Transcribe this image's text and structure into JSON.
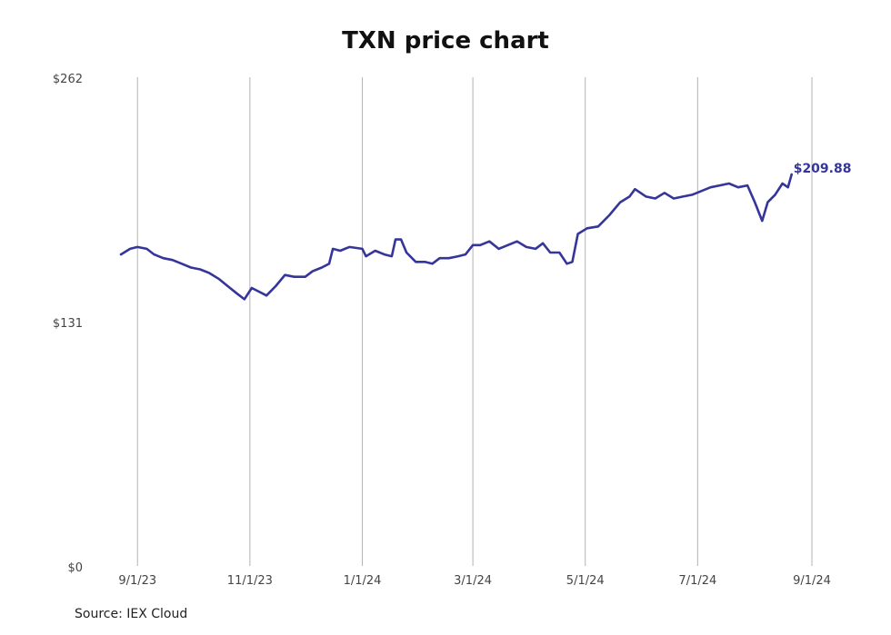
{
  "title": "TXN price chart",
  "source": "Source: IEX Cloud",
  "colors": {
    "line": "#35359a",
    "grid": "#b3b3b3",
    "text": "#444444"
  },
  "chart_data": {
    "type": "line",
    "title": "TXN price chart",
    "xlabel": "",
    "ylabel": "",
    "grid": "vertical",
    "x_ticks": [
      "9/1/23",
      "11/1/23",
      "1/1/24",
      "3/1/24",
      "5/1/24",
      "7/1/24",
      "9/1/24"
    ],
    "y_ticks": [
      "$0",
      "$131",
      "$262"
    ],
    "xlim": [
      "2023-08-23",
      "2024-09-01"
    ],
    "ylim": [
      0,
      262
    ],
    "end_label": "$209.88",
    "series": [
      {
        "color": "#35359a",
        "points": [
          [
            "2023-08-23",
            167
          ],
          [
            "2023-08-28",
            170
          ],
          [
            "2023-09-01",
            171
          ],
          [
            "2023-09-06",
            170
          ],
          [
            "2023-09-10",
            167
          ],
          [
            "2023-09-15",
            165
          ],
          [
            "2023-09-20",
            164
          ],
          [
            "2023-09-25",
            162
          ],
          [
            "2023-09-30",
            160
          ],
          [
            "2023-10-05",
            159
          ],
          [
            "2023-10-10",
            157
          ],
          [
            "2023-10-15",
            154
          ],
          [
            "2023-10-20",
            150
          ],
          [
            "2023-10-25",
            146
          ],
          [
            "2023-10-29",
            143
          ],
          [
            "2023-11-02",
            149
          ],
          [
            "2023-11-06",
            147
          ],
          [
            "2023-11-10",
            145
          ],
          [
            "2023-11-15",
            150
          ],
          [
            "2023-11-20",
            156
          ],
          [
            "2023-11-25",
            155
          ],
          [
            "2023-12-01",
            155
          ],
          [
            "2023-12-05",
            158
          ],
          [
            "2023-12-10",
            160
          ],
          [
            "2023-12-14",
            162
          ],
          [
            "2023-12-16",
            170
          ],
          [
            "2023-12-20",
            169
          ],
          [
            "2023-12-25",
            171
          ],
          [
            "2024-01-01",
            170
          ],
          [
            "2024-01-03",
            166
          ],
          [
            "2024-01-08",
            169
          ],
          [
            "2024-01-13",
            167
          ],
          [
            "2024-01-17",
            166
          ],
          [
            "2024-01-19",
            175
          ],
          [
            "2024-01-22",
            175
          ],
          [
            "2024-01-25",
            168
          ],
          [
            "2024-01-30",
            163
          ],
          [
            "2024-02-04",
            163
          ],
          [
            "2024-02-08",
            162
          ],
          [
            "2024-02-12",
            165
          ],
          [
            "2024-02-17",
            165
          ],
          [
            "2024-02-22",
            166
          ],
          [
            "2024-02-26",
            167
          ],
          [
            "2024-03-01",
            172
          ],
          [
            "2024-03-05",
            172
          ],
          [
            "2024-03-10",
            174
          ],
          [
            "2024-03-15",
            170
          ],
          [
            "2024-03-20",
            172
          ],
          [
            "2024-03-25",
            174
          ],
          [
            "2024-03-30",
            171
          ],
          [
            "2024-04-04",
            170
          ],
          [
            "2024-04-08",
            173
          ],
          [
            "2024-04-12",
            168
          ],
          [
            "2024-04-17",
            168
          ],
          [
            "2024-04-21",
            162
          ],
          [
            "2024-04-24",
            163
          ],
          [
            "2024-04-27",
            178
          ],
          [
            "2024-05-02",
            181
          ],
          [
            "2024-05-08",
            182
          ],
          [
            "2024-05-14",
            188
          ],
          [
            "2024-05-20",
            195
          ],
          [
            "2024-05-25",
            198
          ],
          [
            "2024-05-28",
            202
          ],
          [
            "2024-06-03",
            198
          ],
          [
            "2024-06-08",
            197
          ],
          [
            "2024-06-13",
            200
          ],
          [
            "2024-06-18",
            197
          ],
          [
            "2024-06-23",
            198
          ],
          [
            "2024-06-28",
            199
          ],
          [
            "2024-07-03",
            201
          ],
          [
            "2024-07-08",
            203
          ],
          [
            "2024-07-13",
            204
          ],
          [
            "2024-07-18",
            205
          ],
          [
            "2024-07-23",
            203
          ],
          [
            "2024-07-28",
            204
          ],
          [
            "2024-08-01",
            195
          ],
          [
            "2024-08-05",
            185
          ],
          [
            "2024-08-08",
            195
          ],
          [
            "2024-08-12",
            199
          ],
          [
            "2024-08-16",
            205
          ],
          [
            "2024-08-19",
            203
          ],
          [
            "2024-08-21",
            209.88
          ]
        ]
      }
    ]
  }
}
